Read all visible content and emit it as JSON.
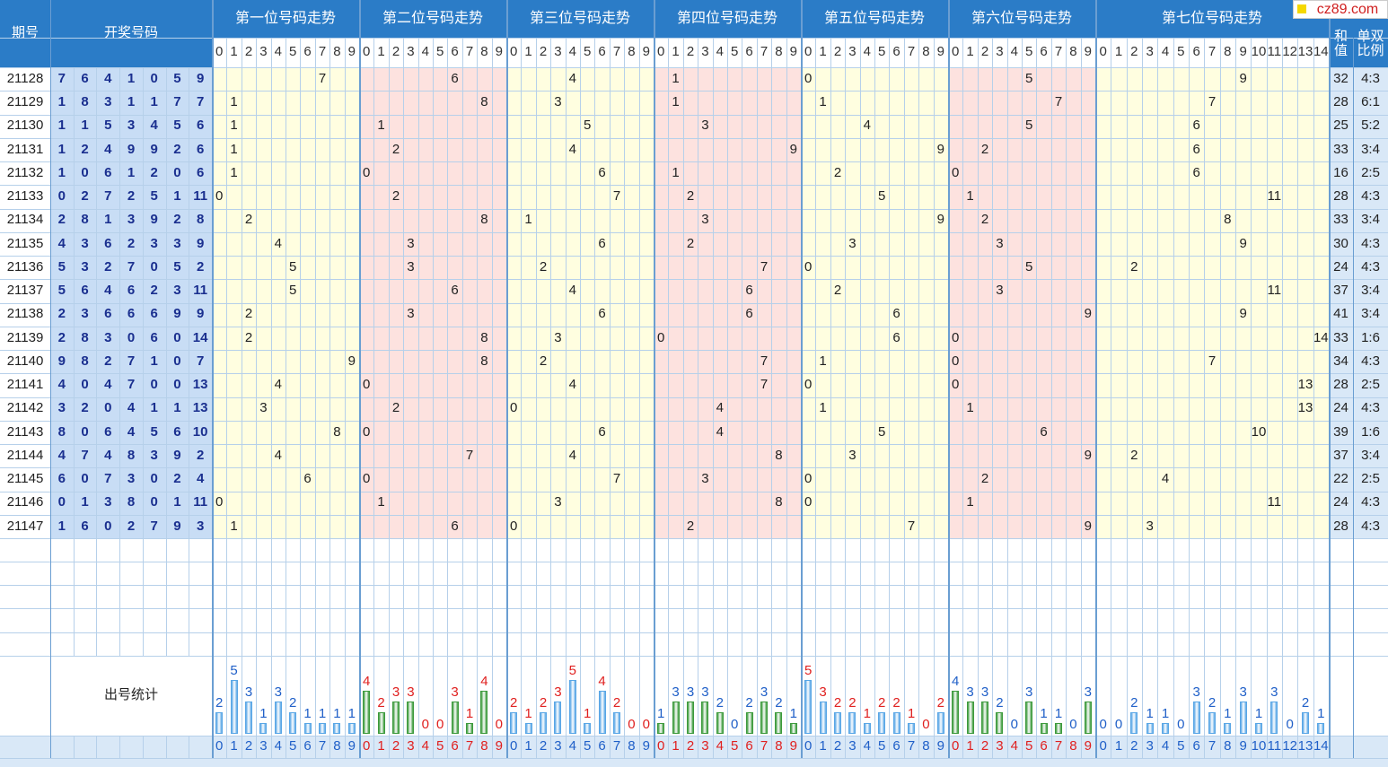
{
  "header": {
    "issue": "期号",
    "numbers": "开奖号码",
    "sum": "和值",
    "ratio": "单双比例",
    "logo": "cz89.com"
  },
  "positions": [
    {
      "title": "第一位号码走势",
      "background": "#fffee0",
      "index_color": "#1f5fc8",
      "digits": [
        0,
        1,
        2,
        3,
        4,
        5,
        6,
        7,
        8,
        9
      ]
    },
    {
      "title": "第二位号码走势",
      "background": "#fde2df",
      "index_color": "#e0201f",
      "digits": [
        0,
        1,
        2,
        3,
        4,
        5,
        6,
        7,
        8,
        9
      ]
    },
    {
      "title": "第三位号码走势",
      "background": "#fffee0",
      "index_color": "#1f5fc8",
      "digits": [
        0,
        1,
        2,
        3,
        4,
        5,
        6,
        7,
        8,
        9
      ]
    },
    {
      "title": "第四位号码走势",
      "background": "#fde2df",
      "index_color": "#e0201f",
      "digits": [
        0,
        1,
        2,
        3,
        4,
        5,
        6,
        7,
        8,
        9
      ]
    },
    {
      "title": "第五位号码走势",
      "background": "#fffee0",
      "index_color": "#1f5fc8",
      "digits": [
        0,
        1,
        2,
        3,
        4,
        5,
        6,
        7,
        8,
        9
      ]
    },
    {
      "title": "第六位号码走势",
      "background": "#fde2df",
      "index_color": "#e0201f",
      "digits": [
        0,
        1,
        2,
        3,
        4,
        5,
        6,
        7,
        8,
        9
      ]
    },
    {
      "title": "第七位号码走势",
      "background": "#fffee0",
      "index_color": "#1f5fc8",
      "digits": [
        0,
        1,
        2,
        3,
        4,
        5,
        6,
        7,
        8,
        9,
        10,
        11,
        12,
        13,
        14
      ]
    }
  ],
  "rows": [
    {
      "issue": "21128",
      "numbers": [
        7,
        6,
        4,
        1,
        0,
        5,
        9
      ],
      "sum": 32,
      "ratio": "4:3"
    },
    {
      "issue": "21129",
      "numbers": [
        1,
        8,
        3,
        1,
        1,
        7,
        7
      ],
      "sum": 28,
      "ratio": "6:1"
    },
    {
      "issue": "21130",
      "numbers": [
        1,
        1,
        5,
        3,
        4,
        5,
        6
      ],
      "sum": 25,
      "ratio": "5:2"
    },
    {
      "issue": "21131",
      "numbers": [
        1,
        2,
        4,
        9,
        9,
        2,
        6
      ],
      "sum": 33,
      "ratio": "3:4"
    },
    {
      "issue": "21132",
      "numbers": [
        1,
        0,
        6,
        1,
        2,
        0,
        6
      ],
      "sum": 16,
      "ratio": "2:5"
    },
    {
      "issue": "21133",
      "numbers": [
        0,
        2,
        7,
        2,
        5,
        1,
        11
      ],
      "sum": 28,
      "ratio": "4:3"
    },
    {
      "issue": "21134",
      "numbers": [
        2,
        8,
        1,
        3,
        9,
        2,
        8
      ],
      "sum": 33,
      "ratio": "3:4"
    },
    {
      "issue": "21135",
      "numbers": [
        4,
        3,
        6,
        2,
        3,
        3,
        9
      ],
      "sum": 30,
      "ratio": "4:3"
    },
    {
      "issue": "21136",
      "numbers": [
        5,
        3,
        2,
        7,
        0,
        5,
        2
      ],
      "sum": 24,
      "ratio": "4:3"
    },
    {
      "issue": "21137",
      "numbers": [
        5,
        6,
        4,
        6,
        2,
        3,
        11
      ],
      "sum": 37,
      "ratio": "3:4"
    },
    {
      "issue": "21138",
      "numbers": [
        2,
        3,
        6,
        6,
        6,
        9,
        9
      ],
      "sum": 41,
      "ratio": "3:4"
    },
    {
      "issue": "21139",
      "numbers": [
        2,
        8,
        3,
        0,
        6,
        0,
        14
      ],
      "sum": 33,
      "ratio": "1:6"
    },
    {
      "issue": "21140",
      "numbers": [
        9,
        8,
        2,
        7,
        1,
        0,
        7
      ],
      "sum": 34,
      "ratio": "4:3"
    },
    {
      "issue": "21141",
      "numbers": [
        4,
        0,
        4,
        7,
        0,
        0,
        13
      ],
      "sum": 28,
      "ratio": "2:5"
    },
    {
      "issue": "21142",
      "numbers": [
        3,
        2,
        0,
        4,
        1,
        1,
        13
      ],
      "sum": 24,
      "ratio": "4:3"
    },
    {
      "issue": "21143",
      "numbers": [
        8,
        0,
        6,
        4,
        5,
        6,
        10
      ],
      "sum": 39,
      "ratio": "1:6"
    },
    {
      "issue": "21144",
      "numbers": [
        4,
        7,
        4,
        8,
        3,
        9,
        2
      ],
      "sum": 37,
      "ratio": "3:4"
    },
    {
      "issue": "21145",
      "numbers": [
        6,
        0,
        7,
        3,
        0,
        2,
        4
      ],
      "sum": 22,
      "ratio": "2:5"
    },
    {
      "issue": "21146",
      "numbers": [
        0,
        1,
        3,
        8,
        0,
        1,
        11
      ],
      "sum": 24,
      "ratio": "4:3"
    },
    {
      "issue": "21147",
      "numbers": [
        1,
        6,
        0,
        2,
        7,
        9,
        3
      ],
      "sum": 28,
      "ratio": "4:3"
    }
  ],
  "stats": {
    "label": "出号统计",
    "positions": [
      {
        "counts": [
          2,
          5,
          3,
          1,
          3,
          2,
          1,
          1,
          1,
          1
        ],
        "bar_color": "#58a6e6",
        "count_color": "#1f5fc8"
      },
      {
        "counts": [
          4,
          2,
          3,
          3,
          0,
          0,
          3,
          1,
          4,
          0
        ],
        "bar_color": "#3c9a3c",
        "count_color": "#e0201f"
      },
      {
        "counts": [
          2,
          1,
          2,
          3,
          5,
          1,
          4,
          2,
          0,
          0
        ],
        "bar_color": "#58a6e6",
        "count_color": "#e0201f"
      },
      {
        "counts": [
          1,
          3,
          3,
          3,
          2,
          0,
          2,
          3,
          2,
          1
        ],
        "bar_color": "#3c9a3c",
        "count_color": "#1f5fc8"
      },
      {
        "counts": [
          5,
          3,
          2,
          2,
          1,
          2,
          2,
          1,
          0,
          2
        ],
        "bar_color": "#58a6e6",
        "count_color": "#e0201f"
      },
      {
        "counts": [
          4,
          3,
          3,
          2,
          0,
          3,
          1,
          1,
          0,
          3
        ],
        "bar_color": "#3c9a3c",
        "count_color": "#1f5fc8"
      },
      {
        "counts": [
          0,
          0,
          2,
          1,
          1,
          0,
          3,
          2,
          1,
          3,
          1,
          3,
          0,
          2,
          1
        ],
        "bar_color": "#58a6e6",
        "count_color": "#1f5fc8"
      }
    ]
  }
}
